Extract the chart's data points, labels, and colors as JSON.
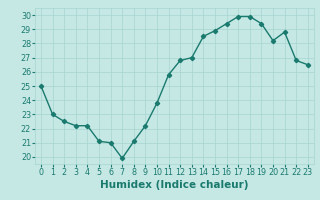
{
  "x": [
    0,
    1,
    2,
    3,
    4,
    5,
    6,
    7,
    8,
    9,
    10,
    11,
    12,
    13,
    14,
    15,
    16,
    17,
    18,
    19,
    20,
    21,
    22,
    23
  ],
  "y": [
    25.0,
    23.0,
    22.5,
    22.2,
    22.2,
    21.1,
    21.0,
    19.9,
    21.1,
    22.2,
    23.8,
    25.8,
    26.8,
    27.0,
    28.5,
    28.9,
    29.4,
    29.9,
    29.9,
    29.4,
    28.2,
    28.8,
    26.8,
    26.5
  ],
  "line_color": "#1a7a6e",
  "marker": "D",
  "marker_size": 2.2,
  "line_width": 1.0,
  "xlabel": "Humidex (Indice chaleur)",
  "xlim": [
    -0.5,
    23.5
  ],
  "ylim": [
    19.5,
    30.5
  ],
  "yticks": [
    20,
    21,
    22,
    23,
    24,
    25,
    26,
    27,
    28,
    29,
    30
  ],
  "xticks": [
    0,
    1,
    2,
    3,
    4,
    5,
    6,
    7,
    8,
    9,
    10,
    11,
    12,
    13,
    14,
    15,
    16,
    17,
    18,
    19,
    20,
    21,
    22,
    23
  ],
  "bg_color": "#c5e8e5",
  "grid_color": "#a8d5d0",
  "tick_fontsize": 5.8,
  "xlabel_fontsize": 7.5,
  "tick_color": "#1a7a6e",
  "label_color": "#1a7a6e"
}
